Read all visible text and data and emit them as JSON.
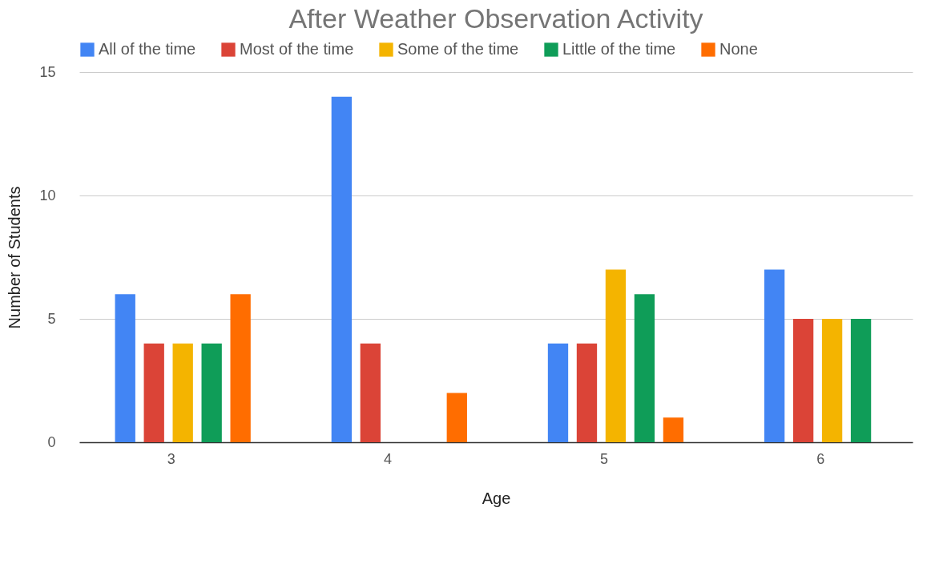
{
  "chart_data": {
    "type": "bar",
    "title": "After Weather Observation Activity",
    "xlabel": "Age",
    "ylabel": "Number of Students",
    "categories": [
      "3",
      "4",
      "5",
      "6"
    ],
    "series": [
      {
        "name": "All of the time",
        "color": "#4285f4",
        "values": [
          6,
          14,
          4,
          7
        ]
      },
      {
        "name": "Most of the time",
        "color": "#db4437",
        "values": [
          4,
          4,
          4,
          5
        ]
      },
      {
        "name": "Some of the time",
        "color": "#f4b400",
        "values": [
          4,
          0,
          7,
          5
        ]
      },
      {
        "name": "Little of the time",
        "color": "#0f9d58",
        "values": [
          4,
          0,
          6,
          5
        ]
      },
      {
        "name": "None",
        "color": "#ff6d00",
        "values": [
          6,
          2,
          1,
          0
        ]
      }
    ],
    "ylim": [
      0,
      15
    ],
    "yticks": [
      0,
      5,
      10,
      15
    ],
    "grid": "y",
    "legend": "top"
  }
}
